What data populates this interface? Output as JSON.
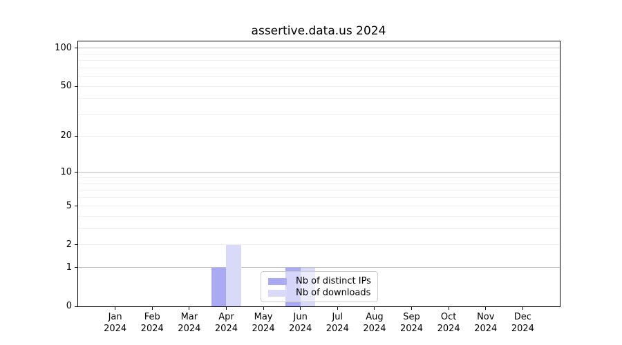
{
  "title": "assertive.data.us 2024",
  "chart_data": {
    "type": "bar",
    "title": "assertive.data.us 2024",
    "categories": [
      "Jan",
      "Feb",
      "Mar",
      "Apr",
      "May",
      "Jun",
      "Jul",
      "Aug",
      "Sep",
      "Oct",
      "Nov",
      "Dec"
    ],
    "category_year": "2024",
    "series": [
      {
        "name": "Nb of distinct IPs",
        "color": "#aaaaf2",
        "values": [
          0,
          0,
          0,
          1,
          0,
          1,
          0,
          0,
          0,
          0,
          0,
          0
        ]
      },
      {
        "name": "Nb of downloads",
        "color": "#d9d9f8",
        "values": [
          0,
          0,
          0,
          2,
          0,
          1,
          0,
          0,
          0,
          0,
          0,
          0
        ]
      }
    ],
    "y_axis": {
      "scale": "log1p",
      "ticks": [
        100,
        50,
        20,
        10,
        5,
        2,
        1,
        0
      ],
      "major_gridlines": [
        1,
        10,
        100
      ],
      "minor_gridlines": [
        2,
        3,
        4,
        5,
        6,
        7,
        8,
        9,
        20,
        30,
        40,
        50,
        60,
        70,
        80,
        90
      ],
      "top": 113,
      "bottom": 0
    },
    "legend": {
      "position": "lower-center-right"
    },
    "grid": true,
    "colors": {
      "major_grid": "#bbbbbb",
      "minor_grid": "#efefef",
      "spine": "#000000",
      "background": "#ffffff"
    }
  }
}
